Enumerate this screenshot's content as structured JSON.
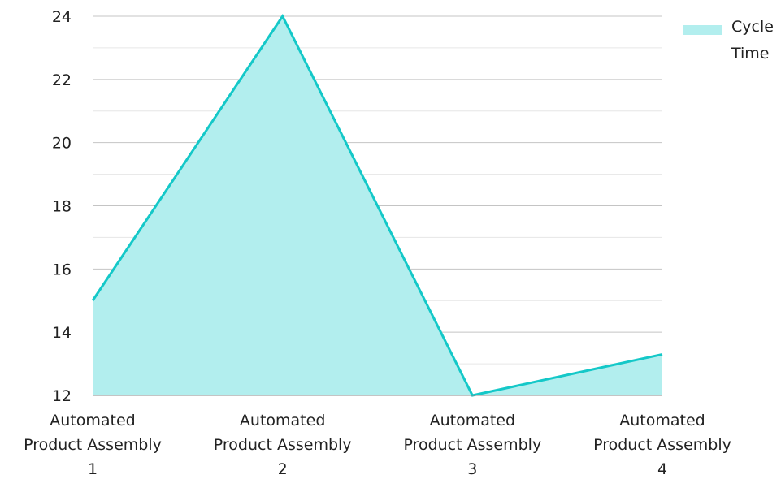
{
  "chart_data": {
    "type": "area",
    "categories": [
      [
        "Automated",
        "Product Assembly",
        "1"
      ],
      [
        "Automated",
        "Product Assembly",
        "2"
      ],
      [
        "Automated",
        "Product Assembly",
        "3"
      ],
      [
        "Automated",
        "Product Assembly",
        "4"
      ]
    ],
    "series": [
      {
        "name": "Cycle Time",
        "values": [
          15,
          24,
          12,
          13.3
        ]
      }
    ],
    "legend_lines": [
      "Cycle",
      "Time"
    ],
    "legend_position": "top-right",
    "y_ticks": [
      "12",
      "14",
      "16",
      "18",
      "20",
      "22",
      "24"
    ],
    "ylim": [
      12,
      24
    ],
    "grid": true,
    "colors": {
      "line": "#14c8c8",
      "fill": "#b2eeee",
      "major_grid": "#c4c4c4",
      "minor_grid": "#e6e6e6",
      "axis": "#8a8a8a"
    }
  }
}
